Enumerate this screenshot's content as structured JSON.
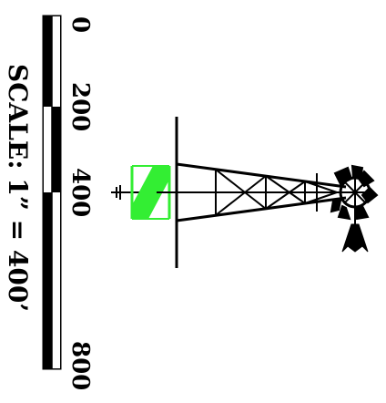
{
  "scale_bar": {
    "ticks": [
      "0",
      "200",
      "400",
      "800"
    ],
    "label": "SCALE: 1” = 400’",
    "colors": {
      "dark": "#000000",
      "light": "#ffffff"
    }
  },
  "symbols": {
    "north_arrow": {
      "color": "#33ee33",
      "icon": "north-arrow-icon"
    },
    "windmill": {
      "color": "#000000",
      "icon": "windmill-icon"
    }
  }
}
